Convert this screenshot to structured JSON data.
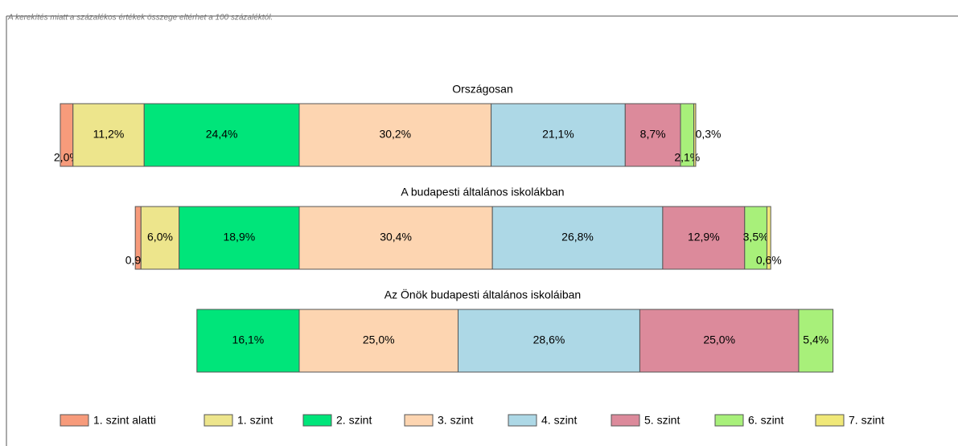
{
  "chart_data": {
    "type": "diverging_stacked_bar",
    "subtitle": "A kerekítés miatt a százalékos értékek összege eltérhet a 100 százaléktól.",
    "series": [
      {
        "name": "1. szint alatti",
        "color": "#f79b7b"
      },
      {
        "name": "1. szint",
        "color": "#ede58c"
      },
      {
        "name": "2. szint",
        "color": "#00e57a"
      },
      {
        "name": "3. szint",
        "color": "#fdd5b1"
      },
      {
        "name": "4. szint",
        "color": "#add8e6"
      },
      {
        "name": "5. szint",
        "color": "#dc8a9b"
      },
      {
        "name": "6. szint",
        "color": "#a8f07a"
      },
      {
        "name": "7. szint",
        "color": "#f0e878"
      }
    ],
    "rows": [
      {
        "name": "Országosan",
        "values": [
          2.0,
          11.2,
          24.4,
          30.2,
          21.1,
          8.7,
          2.1,
          0.3
        ],
        "value_labels": [
          "2,0%",
          "11,2%",
          "24,4%",
          "30,2%",
          "21,1%",
          "8,7%",
          "2,1%",
          "0,3%"
        ]
      },
      {
        "name": "A budapesti általános iskolákban",
        "values": [
          0.9,
          6.0,
          18.9,
          30.4,
          26.8,
          12.9,
          3.5,
          0.6
        ],
        "value_labels": [
          "0,9%",
          "6,0%",
          "18,9%",
          "30,4%",
          "26,8%",
          "12,9%",
          "3,5%",
          "0,6%"
        ]
      },
      {
        "name": "Az Önök budapesti általános iskoláiban",
        "values": [
          null,
          null,
          16.1,
          25.0,
          28.6,
          25.0,
          5.4,
          null
        ],
        "value_labels": [
          null,
          null,
          "16,1%",
          "25,0%",
          "28,6%",
          "25,0%",
          "5,4%",
          null
        ]
      }
    ]
  }
}
